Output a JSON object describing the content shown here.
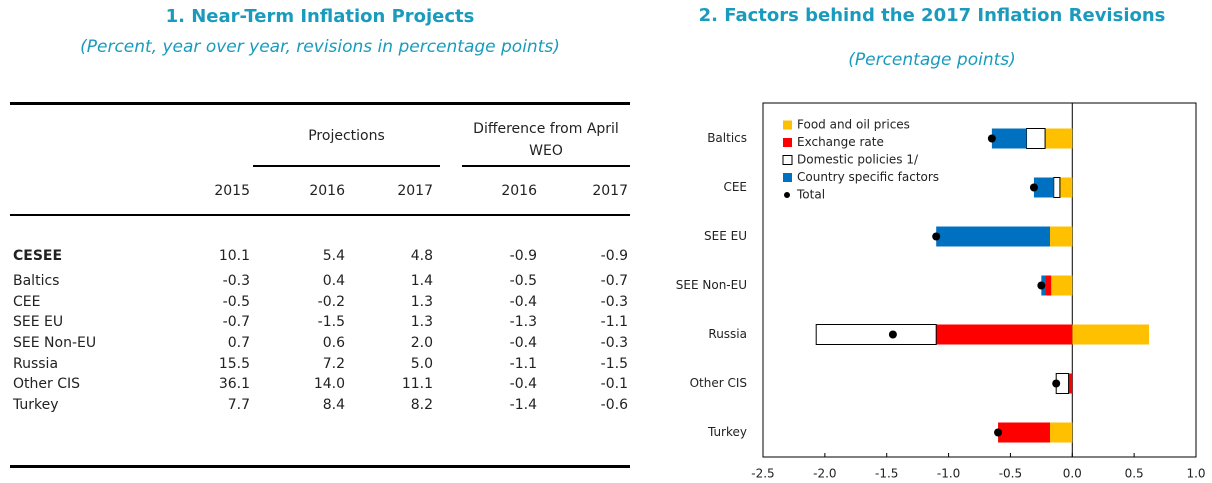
{
  "table": {
    "title": "1. Near-Term Inflation Projects",
    "subtitle": "(Percent, year over year, revisions in percentage points)",
    "group_headers": [
      "Projections",
      "Difference from April WEO"
    ],
    "columns": [
      "2015",
      "2016",
      "2017",
      "2016",
      "2017"
    ],
    "rows": [
      [
        "CESEE",
        "10.1",
        "5.4",
        "4.8",
        "-0.9",
        "-0.9"
      ],
      [
        "Baltics",
        "-0.3",
        "0.4",
        "1.4",
        "-0.5",
        "-0.7"
      ],
      [
        "CEE",
        "-0.5",
        "-0.2",
        "1.3",
        "-0.4",
        "-0.3"
      ],
      [
        "SEE EU",
        "-0.7",
        "-1.5",
        "1.3",
        "-1.3",
        "-1.1"
      ],
      [
        "SEE Non-EU",
        "0.7",
        "0.6",
        "2.0",
        "-0.4",
        "-0.3"
      ],
      [
        "Russia",
        "15.5",
        "7.2",
        "5.0",
        "-1.1",
        "-1.5"
      ],
      [
        "Other CIS",
        "36.1",
        "14.0",
        "11.1",
        "-0.4",
        "-0.1"
      ],
      [
        "Turkey",
        "7.7",
        "8.4",
        "8.2",
        "-1.4",
        "-0.6"
      ]
    ]
  },
  "chart_data": {
    "type": "stacked_bar_horizontal",
    "title": "2. Factors behind the 2017 Inflation Revisions",
    "subtitle": "(Percentage points)",
    "categories": [
      "Baltics",
      "CEE",
      "SEE EU",
      "SEE Non-EU",
      "Russia",
      "Other CIS",
      "Turkey"
    ],
    "series": [
      {
        "name": "Food and oil prices",
        "color": "#ffc000",
        "values": [
          -0.22,
          -0.1,
          -0.18,
          -0.17,
          0.62,
          0,
          -0.18
        ]
      },
      {
        "name": "Exchange rate",
        "color": "#ff0000",
        "values": [
          0,
          0,
          0,
          -0.05,
          -1.1,
          -0.03,
          -0.42
        ]
      },
      {
        "name": "Domestic policies 1/",
        "color": "#ffffff",
        "values": [
          -0.15,
          -0.05,
          0,
          0,
          -0.97,
          -0.1,
          0
        ]
      },
      {
        "name": "Country specific factors",
        "color": "#0070c0",
        "values": [
          -0.28,
          -0.16,
          -0.92,
          -0.03,
          0,
          0,
          0
        ]
      },
      {
        "name": "Total",
        "color": "#000000",
        "style": "dot",
        "values": [
          -0.65,
          -0.31,
          -1.1,
          -0.25,
          -1.45,
          -0.13,
          -0.6
        ]
      }
    ],
    "xlim": [
      -2.5,
      1
    ],
    "xticks": [
      -2.5,
      {
        "value": -2,
        "label": "-2.0"
      },
      -1.5,
      {
        "value": -1,
        "label": "-1.0"
      },
      -0.5,
      {
        "value": 0,
        "label": "0.0"
      },
      0.5,
      {
        "value": 1,
        "label": "1.0"
      }
    ],
    "legend": "upper-left"
  }
}
